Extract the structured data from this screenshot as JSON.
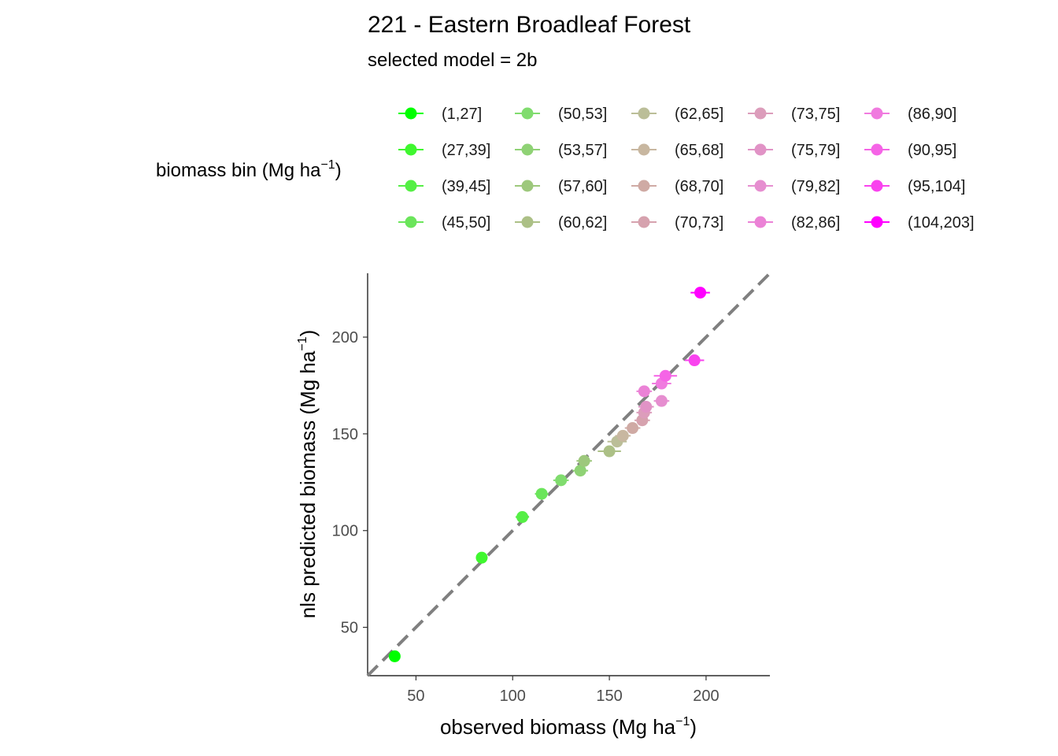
{
  "chart_data": {
    "type": "scatter",
    "title": "221 - Eastern Broadleaf Forest",
    "subtitle": "selected model = 2b",
    "xlabel": {
      "main": "observed biomass (Mg ha",
      "sup": "−1",
      "close": ")"
    },
    "ylabel": {
      "main": "nls predicted biomass (Mg ha",
      "sup": "−1",
      "close": ")"
    },
    "legend_title": {
      "main": "biomass bin (Mg ha",
      "sup": "−1",
      "close": ")"
    },
    "legend_placement": "top",
    "xlim": [
      25,
      233
    ],
    "ylim": [
      25,
      233
    ],
    "x_ticks": [
      50,
      100,
      150,
      200
    ],
    "y_ticks": [
      50,
      100,
      150,
      200
    ],
    "x_tick_labels": [
      "50",
      "100",
      "150",
      "200"
    ],
    "y_tick_labels": [
      "50",
      "100",
      "150",
      "200"
    ],
    "reference_line": {
      "type": "identity",
      "style": "dashed",
      "color": "#808080"
    },
    "grid": false,
    "series": [
      {
        "name": "(1,27]",
        "color": "#00FF00",
        "x": 39,
        "y": 35,
        "xerr": 1.5
      },
      {
        "name": "(27,39]",
        "color": "#3FF72F",
        "x": 84,
        "y": 86,
        "xerr": 3
      },
      {
        "name": "(39,45]",
        "color": "#55EF45",
        "x": 105,
        "y": 107,
        "xerr": 3.5
      },
      {
        "name": "(45,50]",
        "color": "#6BE55B",
        "x": 115,
        "y": 119,
        "xerr": 3.5
      },
      {
        "name": "(50,53]",
        "color": "#80DC6E",
        "x": 125,
        "y": 126,
        "xerr": 4
      },
      {
        "name": "(53,57]",
        "color": "#8FD275",
        "x": 135,
        "y": 131,
        "xerr": 4
      },
      {
        "name": "(57,60]",
        "color": "#9DC87C",
        "x": 137,
        "y": 136,
        "xerr": 4
      },
      {
        "name": "(60,62]",
        "color": "#ACC086",
        "x": 150,
        "y": 141,
        "xerr": 6
      },
      {
        "name": "(62,65]",
        "color": "#BBBE98",
        "x": 154,
        "y": 146,
        "xerr": 5
      },
      {
        "name": "(65,68]",
        "color": "#C8B7A0",
        "x": 157,
        "y": 149,
        "xerr": 4
      },
      {
        "name": "(68,70]",
        "color": "#CFAAA4",
        "x": 162,
        "y": 153,
        "xerr": 4
      },
      {
        "name": "(70,73]",
        "color": "#D6A2AE",
        "x": 167,
        "y": 157,
        "xerr": 4
      },
      {
        "name": "(73,75]",
        "color": "#DC9DBB",
        "x": 168,
        "y": 161,
        "xerr": 4
      },
      {
        "name": "(75,79]",
        "color": "#E193C6",
        "x": 169,
        "y": 164,
        "xerr": 4
      },
      {
        "name": "(79,82]",
        "color": "#E68ED0",
        "x": 177,
        "y": 167,
        "xerr": 4
      },
      {
        "name": "(82,86]",
        "color": "#EB82D6",
        "x": 168,
        "y": 172,
        "xerr": 4
      },
      {
        "name": "(86,90]",
        "color": "#F07ADF",
        "x": 177,
        "y": 176,
        "xerr": 5
      },
      {
        "name": "(90,95]",
        "color": "#F564E6",
        "x": 179,
        "y": 180,
        "xerr": 6
      },
      {
        "name": "(95,104]",
        "color": "#F943EE",
        "x": 194,
        "y": 188,
        "xerr": 5
      },
      {
        "name": "(104,203]",
        "color": "#FF00FF",
        "x": 197,
        "y": 223,
        "xerr": 5
      }
    ]
  }
}
